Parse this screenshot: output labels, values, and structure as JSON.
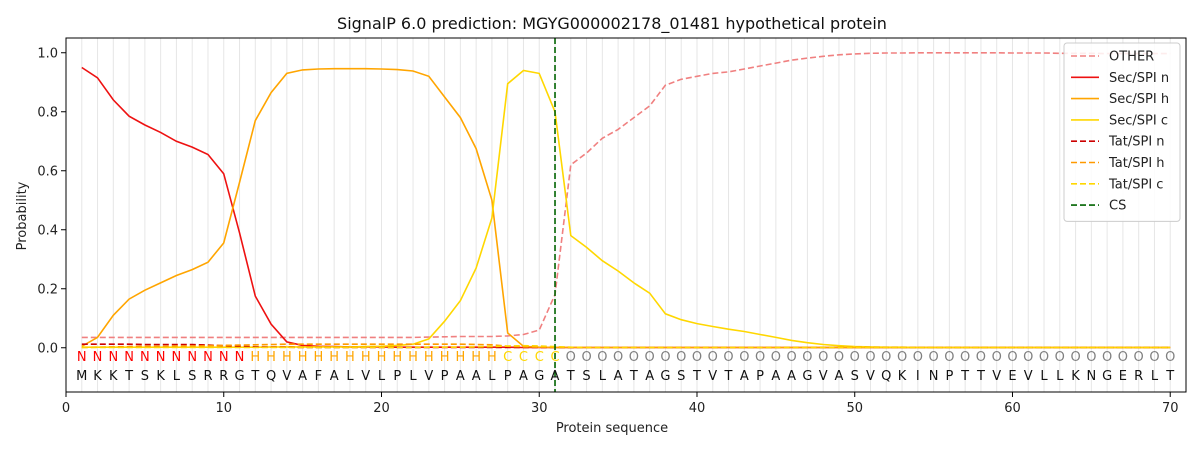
{
  "chart_data": {
    "type": "line",
    "title": "SignalP 6.0 prediction: MGYG000002178_01481 hypothetical protein",
    "xlabel": "Protein sequence",
    "ylabel": "Probability",
    "xlim": [
      0,
      71
    ],
    "ylim": [
      -0.15,
      1.05
    ],
    "xticks": [
      0,
      10,
      20,
      30,
      40,
      50,
      60,
      70
    ],
    "yticks": [
      0.0,
      0.2,
      0.4,
      0.6,
      0.8,
      1.0
    ],
    "ytick_labels": [
      "0.0",
      "0.2",
      "0.4",
      "0.6",
      "0.8",
      "1.0"
    ],
    "grid": "vertical lines at each residue",
    "legend_position": "top-right",
    "x": [
      1,
      2,
      3,
      4,
      5,
      6,
      7,
      8,
      9,
      10,
      11,
      12,
      13,
      14,
      15,
      16,
      17,
      18,
      19,
      20,
      21,
      22,
      23,
      24,
      25,
      26,
      27,
      28,
      29,
      30,
      31,
      32,
      33,
      34,
      35,
      36,
      37,
      38,
      39,
      40,
      41,
      42,
      43,
      44,
      45,
      46,
      47,
      48,
      49,
      50,
      51,
      52,
      53,
      54,
      55,
      56,
      57,
      58,
      59,
      60,
      61,
      62,
      63,
      64,
      65,
      66,
      67,
      68,
      69,
      70
    ],
    "sequence": [
      "M",
      "K",
      "K",
      "T",
      "S",
      "K",
      "L",
      "S",
      "R",
      "R",
      "G",
      "T",
      "Q",
      "V",
      "A",
      "F",
      "A",
      "L",
      "V",
      "L",
      "P",
      "L",
      "V",
      "P",
      "A",
      "A",
      "L",
      "P",
      "A",
      "G",
      "A",
      "T",
      "S",
      "L",
      "A",
      "T",
      "A",
      "G",
      "S",
      "T",
      "V",
      "T",
      "A",
      "P",
      "A",
      "A",
      "G",
      "V",
      "A",
      "S",
      "V",
      "Q",
      "K",
      "I",
      "N",
      "P",
      "T",
      "T",
      "V",
      "E",
      "V",
      "L",
      "L",
      "K",
      "N",
      "G",
      "E",
      "R",
      "L",
      "T"
    ],
    "labels": [
      "N",
      "N",
      "N",
      "N",
      "N",
      "N",
      "N",
      "N",
      "N",
      "N",
      "N",
      "H",
      "H",
      "H",
      "H",
      "H",
      "H",
      "H",
      "H",
      "H",
      "H",
      "H",
      "H",
      "H",
      "H",
      "H",
      "H",
      "C",
      "C",
      "C",
      "C",
      "O",
      "O",
      "O",
      "O",
      "O",
      "O",
      "O",
      "O",
      "O",
      "O",
      "O",
      "O",
      "O",
      "O",
      "O",
      "O",
      "O",
      "O",
      "O",
      "O",
      "O",
      "O",
      "O",
      "O",
      "O",
      "O",
      "O",
      "O",
      "O",
      "O",
      "O",
      "O",
      "O",
      "O",
      "O",
      "O",
      "O",
      "O",
      "O"
    ],
    "label_colors": {
      "N": "#ff0000",
      "H": "#ffa500",
      "C": "#ffd700",
      "O": "#808080"
    },
    "cs_position": 31,
    "series": [
      {
        "name": "OTHER",
        "color": "#f08080",
        "dash": "dashed",
        "values": [
          0.035,
          0.035,
          0.035,
          0.035,
          0.035,
          0.035,
          0.035,
          0.035,
          0.035,
          0.035,
          0.035,
          0.035,
          0.035,
          0.035,
          0.035,
          0.035,
          0.035,
          0.035,
          0.035,
          0.035,
          0.035,
          0.035,
          0.036,
          0.037,
          0.038,
          0.038,
          0.038,
          0.04,
          0.045,
          0.06,
          0.18,
          0.62,
          0.66,
          0.71,
          0.74,
          0.78,
          0.82,
          0.89,
          0.91,
          0.92,
          0.93,
          0.935,
          0.945,
          0.955,
          0.965,
          0.975,
          0.982,
          0.988,
          0.993,
          0.996,
          0.998,
          0.999,
          0.999,
          1.0,
          1.0,
          1.0,
          1.0,
          1.0,
          1.0,
          0.999,
          0.999,
          0.999,
          0.998,
          0.998,
          0.998,
          0.997,
          0.997,
          0.997,
          0.997,
          0.997
        ]
      },
      {
        "name": "Sec/SPI n",
        "color": "#ee1111",
        "dash": "solid",
        "values": [
          0.95,
          0.915,
          0.84,
          0.785,
          0.755,
          0.73,
          0.7,
          0.68,
          0.655,
          0.59,
          0.39,
          0.175,
          0.08,
          0.02,
          0.008,
          0.005,
          0.004,
          0.003,
          0.003,
          0.003,
          0.002,
          0.002,
          0.002,
          0.002,
          0.002,
          0.002,
          0.002,
          0.002,
          0.001,
          0.001,
          0.001,
          0.001,
          0.001,
          0.001,
          0.001,
          0.001,
          0.001,
          0.001,
          0.001,
          0.001,
          0.001,
          0.001,
          0.001,
          0.001,
          0.001,
          0.001,
          0.001,
          0.001,
          0.001,
          0.001,
          0.001,
          0.001,
          0.001,
          0.001,
          0.001,
          0.001,
          0.001,
          0.001,
          0.001,
          0.001,
          0.001,
          0.001,
          0.001,
          0.001,
          0.001,
          0.001,
          0.001,
          0.001,
          0.001,
          0.001
        ]
      },
      {
        "name": "Sec/SPI h",
        "color": "#ffa500",
        "dash": "solid",
        "values": [
          0.005,
          0.035,
          0.11,
          0.165,
          0.195,
          0.22,
          0.245,
          0.265,
          0.29,
          0.355,
          0.56,
          0.77,
          0.865,
          0.93,
          0.942,
          0.945,
          0.946,
          0.946,
          0.946,
          0.945,
          0.943,
          0.938,
          0.92,
          0.85,
          0.78,
          0.675,
          0.5,
          0.05,
          0.005,
          0.002,
          0.001,
          0.001,
          0.001,
          0.001,
          0.001,
          0.001,
          0.001,
          0.001,
          0.001,
          0.001,
          0.001,
          0.001,
          0.001,
          0.001,
          0.001,
          0.001,
          0.001,
          0.001,
          0.001,
          0.001,
          0.001,
          0.001,
          0.001,
          0.001,
          0.001,
          0.001,
          0.001,
          0.001,
          0.001,
          0.001,
          0.001,
          0.001,
          0.001,
          0.001,
          0.001,
          0.001,
          0.001,
          0.001,
          0.001,
          0.001
        ]
      },
      {
        "name": "Sec/SPI c",
        "color": "#ffd700",
        "dash": "solid",
        "values": [
          0.002,
          0.002,
          0.002,
          0.002,
          0.002,
          0.002,
          0.002,
          0.002,
          0.002,
          0.002,
          0.002,
          0.002,
          0.003,
          0.003,
          0.003,
          0.003,
          0.003,
          0.003,
          0.004,
          0.005,
          0.008,
          0.012,
          0.03,
          0.09,
          0.16,
          0.27,
          0.44,
          0.895,
          0.94,
          0.93,
          0.8,
          0.38,
          0.34,
          0.295,
          0.26,
          0.22,
          0.185,
          0.115,
          0.095,
          0.082,
          0.072,
          0.063,
          0.055,
          0.045,
          0.035,
          0.025,
          0.017,
          0.011,
          0.007,
          0.004,
          0.003,
          0.002,
          0.002,
          0.001,
          0.001,
          0.001,
          0.001,
          0.001,
          0.001,
          0.001,
          0.001,
          0.001,
          0.001,
          0.001,
          0.001,
          0.001,
          0.001,
          0.001,
          0.001,
          0.001
        ]
      },
      {
        "name": "Tat/SPI n",
        "color": "#cc0000",
        "dash": "dashed",
        "values": [
          0.012,
          0.012,
          0.012,
          0.012,
          0.011,
          0.011,
          0.011,
          0.011,
          0.009,
          0.007,
          0.005,
          0.003,
          0.002,
          0.002,
          0.001,
          0.001,
          0.001,
          0.001,
          0.001,
          0.001,
          0.001,
          0.001,
          0.001,
          0.001,
          0.001,
          0.001,
          0.001,
          0.001,
          0.001,
          0.001,
          0.001,
          0.001,
          0.001,
          0.001,
          0.001,
          0.001,
          0.001,
          0.001,
          0.001,
          0.001,
          0.001,
          0.001,
          0.001,
          0.001,
          0.001,
          0.001,
          0.001,
          0.001,
          0.001,
          0.001,
          0.001,
          0.001,
          0.001,
          0.001,
          0.001,
          0.001,
          0.001,
          0.001,
          0.001,
          0.001,
          0.001,
          0.001,
          0.001,
          0.001,
          0.001,
          0.001,
          0.001,
          0.001,
          0.001,
          0.001
        ]
      },
      {
        "name": "Tat/SPI h",
        "color": "#ff9900",
        "dash": "dashed",
        "values": [
          0.001,
          0.002,
          0.003,
          0.004,
          0.005,
          0.005,
          0.006,
          0.006,
          0.007,
          0.008,
          0.009,
          0.01,
          0.011,
          0.012,
          0.012,
          0.012,
          0.012,
          0.012,
          0.012,
          0.012,
          0.012,
          0.012,
          0.012,
          0.012,
          0.012,
          0.011,
          0.01,
          0.005,
          0.003,
          0.002,
          0.001,
          0.001,
          0.001,
          0.001,
          0.001,
          0.001,
          0.001,
          0.001,
          0.001,
          0.001,
          0.001,
          0.001,
          0.001,
          0.001,
          0.001,
          0.001,
          0.001,
          0.001,
          0.001,
          0.001,
          0.001,
          0.001,
          0.001,
          0.001,
          0.001,
          0.001,
          0.001,
          0.001,
          0.001,
          0.001,
          0.001,
          0.001,
          0.001,
          0.001,
          0.001,
          0.001,
          0.001,
          0.001,
          0.001,
          0.001
        ]
      },
      {
        "name": "Tat/SPI c",
        "color": "#ffd700",
        "dash": "dashed",
        "values": [
          0.001,
          0.001,
          0.001,
          0.001,
          0.001,
          0.001,
          0.001,
          0.001,
          0.001,
          0.001,
          0.001,
          0.001,
          0.001,
          0.001,
          0.001,
          0.001,
          0.001,
          0.001,
          0.001,
          0.001,
          0.001,
          0.001,
          0.002,
          0.002,
          0.002,
          0.003,
          0.004,
          0.006,
          0.007,
          0.006,
          0.004,
          0.002,
          0.001,
          0.001,
          0.001,
          0.001,
          0.001,
          0.001,
          0.001,
          0.001,
          0.001,
          0.001,
          0.001,
          0.001,
          0.001,
          0.001,
          0.001,
          0.001,
          0.001,
          0.001,
          0.001,
          0.001,
          0.001,
          0.001,
          0.001,
          0.001,
          0.001,
          0.001,
          0.001,
          0.001,
          0.001,
          0.001,
          0.001,
          0.001,
          0.001,
          0.001,
          0.001,
          0.001,
          0.001,
          0.001
        ]
      }
    ],
    "cs_legend": {
      "name": "CS",
      "color": "#006400",
      "dash": "dashed"
    }
  }
}
